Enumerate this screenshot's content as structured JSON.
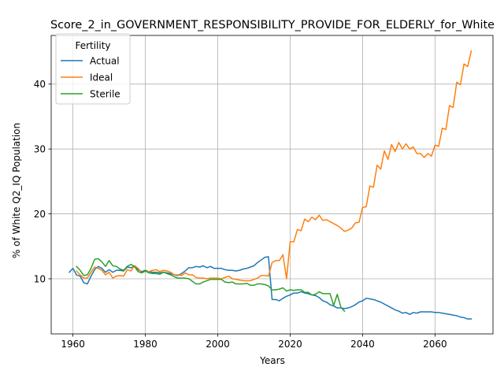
{
  "chart_data": {
    "type": "line",
    "title": "Score_2_in_GOVERNMENT_RESPONSIBILITY_PROVIDE_FOR_ELDERLY_for_White",
    "xlabel": "Years",
    "ylabel": "% of White Q2_IQ Population",
    "xlim": [
      1954,
      2076
    ],
    "ylim": [
      1.5,
      47.5
    ],
    "xticks": [
      1960,
      1980,
      2000,
      2020,
      2040,
      2060
    ],
    "yticks": [
      10,
      20,
      30,
      40
    ],
    "grid": true,
    "legend": {
      "title": "Fertility",
      "position": "top-left"
    },
    "series": [
      {
        "name": "Actual",
        "color": "#1f77b4",
        "points": [
          [
            1959,
            11.0
          ],
          [
            1960,
            11.6
          ],
          [
            1961,
            10.6
          ],
          [
            1962,
            10.4
          ],
          [
            1963,
            9.4
          ],
          [
            1964,
            9.2
          ],
          [
            1965,
            10.4
          ],
          [
            1966,
            11.4
          ],
          [
            1967,
            11.9
          ],
          [
            1968,
            11.6
          ],
          [
            1969,
            11.0
          ],
          [
            1970,
            11.4
          ],
          [
            1971,
            11.0
          ],
          [
            1972,
            11.3
          ],
          [
            1973,
            11.3
          ],
          [
            1974,
            11.2
          ],
          [
            1975,
            11.8
          ],
          [
            1976,
            11.7
          ],
          [
            1977,
            11.9
          ],
          [
            1978,
            11.4
          ],
          [
            1979,
            11.1
          ],
          [
            1980,
            11.3
          ],
          [
            1981,
            11.1
          ],
          [
            1982,
            11.0
          ],
          [
            1983,
            11.0
          ],
          [
            1984,
            10.9
          ],
          [
            1985,
            11.0
          ],
          [
            1986,
            10.9
          ],
          [
            1987,
            10.8
          ],
          [
            1988,
            10.6
          ],
          [
            1989,
            10.5
          ],
          [
            1990,
            10.8
          ],
          [
            1991,
            11.2
          ],
          [
            1992,
            11.7
          ],
          [
            1993,
            11.7
          ],
          [
            1994,
            11.9
          ],
          [
            1995,
            11.8
          ],
          [
            1996,
            12.0
          ],
          [
            1997,
            11.7
          ],
          [
            1998,
            11.9
          ],
          [
            1999,
            11.6
          ],
          [
            2000,
            11.6
          ],
          [
            2001,
            11.6
          ],
          [
            2002,
            11.4
          ],
          [
            2003,
            11.3
          ],
          [
            2004,
            11.3
          ],
          [
            2005,
            11.2
          ],
          [
            2006,
            11.3
          ],
          [
            2007,
            11.5
          ],
          [
            2008,
            11.6
          ],
          [
            2009,
            11.8
          ],
          [
            2010,
            12.0
          ],
          [
            2011,
            12.5
          ],
          [
            2012,
            12.9
          ],
          [
            2013,
            13.3
          ],
          [
            2014,
            13.4
          ],
          [
            2015,
            6.8
          ],
          [
            2016,
            6.8
          ],
          [
            2017,
            6.6
          ],
          [
            2018,
            7.0
          ],
          [
            2019,
            7.3
          ],
          [
            2020,
            7.5
          ],
          [
            2021,
            7.8
          ],
          [
            2022,
            7.8
          ],
          [
            2023,
            8.0
          ],
          [
            2024,
            7.8
          ],
          [
            2025,
            7.7
          ],
          [
            2026,
            7.5
          ],
          [
            2027,
            7.4
          ],
          [
            2028,
            7.1
          ],
          [
            2029,
            6.6
          ],
          [
            2030,
            6.4
          ],
          [
            2031,
            6.0
          ],
          [
            2032,
            5.8
          ],
          [
            2033,
            5.5
          ],
          [
            2034,
            5.5
          ],
          [
            2035,
            5.4
          ],
          [
            2036,
            5.5
          ],
          [
            2037,
            5.7
          ],
          [
            2038,
            6.0
          ],
          [
            2039,
            6.4
          ],
          [
            2040,
            6.6
          ],
          [
            2041,
            7.0
          ],
          [
            2042,
            6.9
          ],
          [
            2043,
            6.8
          ],
          [
            2044,
            6.6
          ],
          [
            2045,
            6.4
          ],
          [
            2046,
            6.1
          ],
          [
            2047,
            5.8
          ],
          [
            2048,
            5.5
          ],
          [
            2049,
            5.2
          ],
          [
            2050,
            5.0
          ],
          [
            2051,
            4.7
          ],
          [
            2052,
            4.8
          ],
          [
            2053,
            4.5
          ],
          [
            2054,
            4.8
          ],
          [
            2055,
            4.7
          ],
          [
            2056,
            4.9
          ],
          [
            2057,
            4.9
          ],
          [
            2058,
            4.9
          ],
          [
            2059,
            4.9
          ],
          [
            2060,
            4.8
          ],
          [
            2061,
            4.8
          ],
          [
            2062,
            4.7
          ],
          [
            2063,
            4.6
          ],
          [
            2064,
            4.5
          ],
          [
            2065,
            4.4
          ],
          [
            2066,
            4.3
          ],
          [
            2067,
            4.1
          ],
          [
            2068,
            4.0
          ],
          [
            2069,
            3.8
          ],
          [
            2070,
            3.8
          ]
        ]
      },
      {
        "name": "Ideal",
        "color": "#ff7f0e",
        "points": [
          [
            1961,
            11.2
          ],
          [
            1962,
            10.6
          ],
          [
            1963,
            10.1
          ],
          [
            1964,
            10.1
          ],
          [
            1965,
            11.0
          ],
          [
            1966,
            11.8
          ],
          [
            1967,
            11.6
          ],
          [
            1968,
            11.3
          ],
          [
            1969,
            10.6
          ],
          [
            1970,
            11.0
          ],
          [
            1971,
            10.1
          ],
          [
            1972,
            10.4
          ],
          [
            1973,
            10.5
          ],
          [
            1974,
            10.4
          ],
          [
            1975,
            11.4
          ],
          [
            1976,
            11.2
          ],
          [
            1977,
            12.0
          ],
          [
            1978,
            11.6
          ],
          [
            1979,
            10.9
          ],
          [
            1980,
            11.2
          ],
          [
            1981,
            11.1
          ],
          [
            1982,
            11.3
          ],
          [
            1983,
            11.4
          ],
          [
            1984,
            11.1
          ],
          [
            1985,
            11.3
          ],
          [
            1986,
            11.2
          ],
          [
            1987,
            11.0
          ],
          [
            1988,
            10.6
          ],
          [
            1989,
            10.6
          ],
          [
            1990,
            10.5
          ],
          [
            1991,
            10.9
          ],
          [
            1992,
            10.6
          ],
          [
            1993,
            10.6
          ],
          [
            1994,
            10.2
          ],
          [
            1995,
            10.1
          ],
          [
            1996,
            10.1
          ],
          [
            1997,
            10.0
          ],
          [
            1998,
            10.1
          ],
          [
            1999,
            10.1
          ],
          [
            2000,
            10.1
          ],
          [
            2001,
            10.0
          ],
          [
            2002,
            10.2
          ],
          [
            2003,
            10.4
          ],
          [
            2004,
            10.0
          ],
          [
            2005,
            9.9
          ],
          [
            2006,
            9.8
          ],
          [
            2007,
            9.7
          ],
          [
            2008,
            9.7
          ],
          [
            2009,
            9.7
          ],
          [
            2010,
            9.9
          ],
          [
            2011,
            10.1
          ],
          [
            2012,
            10.5
          ],
          [
            2013,
            10.5
          ],
          [
            2014,
            10.4
          ],
          [
            2015,
            12.5
          ],
          [
            2016,
            12.8
          ],
          [
            2017,
            12.8
          ],
          [
            2018,
            13.7
          ],
          [
            2019,
            10.0
          ],
          [
            2020,
            15.7
          ],
          [
            2021,
            15.7
          ],
          [
            2022,
            17.6
          ],
          [
            2023,
            17.4
          ],
          [
            2024,
            19.2
          ],
          [
            2025,
            18.8
          ],
          [
            2026,
            19.5
          ],
          [
            2027,
            19.1
          ],
          [
            2028,
            19.8
          ],
          [
            2029,
            19.0
          ],
          [
            2030,
            19.1
          ],
          [
            2031,
            18.8
          ],
          [
            2032,
            18.5
          ],
          [
            2033,
            18.2
          ],
          [
            2034,
            17.8
          ],
          [
            2035,
            17.3
          ],
          [
            2036,
            17.5
          ],
          [
            2037,
            17.8
          ],
          [
            2038,
            18.6
          ],
          [
            2039,
            18.7
          ],
          [
            2040,
            21.0
          ],
          [
            2041,
            21.1
          ],
          [
            2042,
            24.3
          ],
          [
            2043,
            24.1
          ],
          [
            2044,
            27.5
          ],
          [
            2045,
            26.9
          ],
          [
            2046,
            29.7
          ],
          [
            2047,
            28.4
          ],
          [
            2048,
            30.7
          ],
          [
            2049,
            29.6
          ],
          [
            2050,
            31.0
          ],
          [
            2051,
            30.0
          ],
          [
            2052,
            30.8
          ],
          [
            2053,
            30.0
          ],
          [
            2054,
            30.3
          ],
          [
            2055,
            29.3
          ],
          [
            2056,
            29.3
          ],
          [
            2057,
            28.7
          ],
          [
            2058,
            29.3
          ],
          [
            2059,
            28.9
          ],
          [
            2060,
            30.6
          ],
          [
            2061,
            30.4
          ],
          [
            2062,
            33.2
          ],
          [
            2063,
            33.0
          ],
          [
            2064,
            36.7
          ],
          [
            2065,
            36.4
          ],
          [
            2066,
            40.3
          ],
          [
            2067,
            39.9
          ],
          [
            2068,
            43.1
          ],
          [
            2069,
            42.7
          ],
          [
            2070,
            45.1
          ]
        ]
      },
      {
        "name": "Sterile",
        "color": "#2ca02c",
        "points": [
          [
            1961,
            11.9
          ],
          [
            1962,
            11.3
          ],
          [
            1963,
            10.5
          ],
          [
            1964,
            10.6
          ],
          [
            1965,
            11.6
          ],
          [
            1966,
            13.0
          ],
          [
            1967,
            13.1
          ],
          [
            1968,
            12.6
          ],
          [
            1969,
            11.9
          ],
          [
            1970,
            12.8
          ],
          [
            1971,
            12.0
          ],
          [
            1972,
            11.9
          ],
          [
            1973,
            11.5
          ],
          [
            1974,
            11.3
          ],
          [
            1975,
            11.9
          ],
          [
            1976,
            12.2
          ],
          [
            1977,
            11.9
          ],
          [
            1978,
            11.1
          ],
          [
            1979,
            10.9
          ],
          [
            1980,
            11.2
          ],
          [
            1981,
            10.9
          ],
          [
            1982,
            10.8
          ],
          [
            1983,
            10.8
          ],
          [
            1984,
            10.7
          ],
          [
            1985,
            11.0
          ],
          [
            1986,
            10.8
          ],
          [
            1987,
            10.6
          ],
          [
            1988,
            10.3
          ],
          [
            1989,
            10.1
          ],
          [
            1990,
            10.1
          ],
          [
            1991,
            10.1
          ],
          [
            1992,
            10.0
          ],
          [
            1993,
            9.6
          ],
          [
            1994,
            9.2
          ],
          [
            1995,
            9.2
          ],
          [
            1996,
            9.5
          ],
          [
            1997,
            9.7
          ],
          [
            1998,
            9.9
          ],
          [
            1999,
            9.9
          ],
          [
            2000,
            9.9
          ],
          [
            2001,
            9.9
          ],
          [
            2002,
            9.5
          ],
          [
            2003,
            9.4
          ],
          [
            2004,
            9.5
          ],
          [
            2005,
            9.2
          ],
          [
            2006,
            9.2
          ],
          [
            2007,
            9.2
          ],
          [
            2008,
            9.3
          ],
          [
            2009,
            9.0
          ],
          [
            2010,
            9.0
          ],
          [
            2011,
            9.2
          ],
          [
            2012,
            9.2
          ],
          [
            2013,
            9.1
          ],
          [
            2014,
            8.9
          ],
          [
            2015,
            8.3
          ],
          [
            2016,
            8.3
          ],
          [
            2017,
            8.4
          ],
          [
            2018,
            8.6
          ],
          [
            2019,
            8.1
          ],
          [
            2020,
            8.3
          ],
          [
            2021,
            8.2
          ],
          [
            2022,
            8.3
          ],
          [
            2023,
            8.3
          ],
          [
            2024,
            7.9
          ],
          [
            2025,
            7.9
          ],
          [
            2026,
            7.5
          ],
          [
            2027,
            7.6
          ],
          [
            2028,
            8.0
          ],
          [
            2029,
            7.7
          ],
          [
            2030,
            7.7
          ],
          [
            2031,
            7.7
          ],
          [
            2032,
            5.9
          ],
          [
            2033,
            7.6
          ],
          [
            2034,
            5.6
          ],
          [
            2035,
            5.0
          ]
        ]
      }
    ]
  }
}
